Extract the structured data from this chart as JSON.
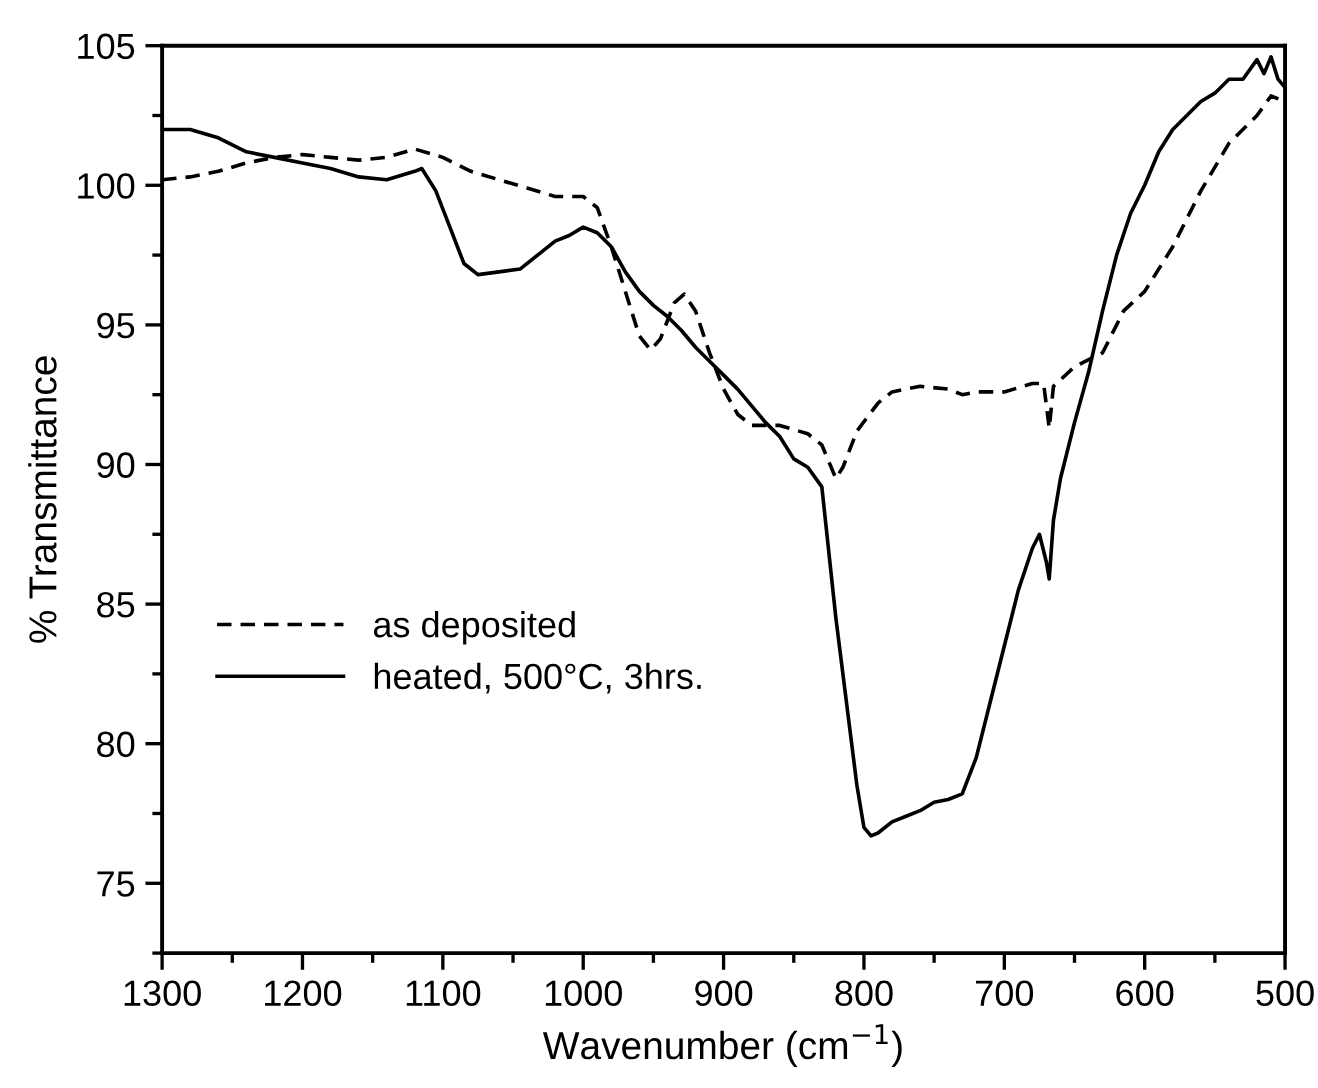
{
  "chart_data": {
    "type": "line",
    "xlabel": "Wavenumber (cm$^{−1}$)",
    "ylabel": "% Transmittance",
    "xlim": [
      1300,
      500
    ],
    "ylim": [
      72.5,
      105
    ],
    "xticks": [
      1300,
      {
        "value": 1250,
        "label": null
      },
      1200,
      {
        "value": 1150,
        "label": null
      },
      1100,
      {
        "value": 1050,
        "label": null
      },
      1000,
      {
        "value": 950,
        "label": null
      },
      900,
      {
        "value": 850,
        "label": null
      },
      800,
      {
        "value": 750,
        "label": null
      },
      700,
      {
        "value": 650,
        "label": null
      },
      600,
      {
        "value": 550,
        "label": null
      },
      500
    ],
    "yticks": [
      {
        "value": 72.5,
        "label": null
      },
      75,
      {
        "value": 77.5,
        "label": null
      },
      80,
      {
        "value": 82.5,
        "label": null
      },
      85,
      {
        "value": 87.5,
        "label": null
      },
      90,
      {
        "value": 92.5,
        "label": null
      },
      95,
      {
        "value": 97.5,
        "label": null
      },
      100,
      {
        "value": 102.5,
        "label": null
      },
      105
    ],
    "grid": false,
    "legend": "left",
    "marker": "none",
    "series": [
      {
        "name": "as deposited",
        "color": "#000000",
        "line_style": "dashed",
        "x": [
          1300,
          1280,
          1260,
          1240,
          1220,
          1200,
          1180,
          1160,
          1140,
          1120,
          1100,
          1080,
          1060,
          1040,
          1020,
          1000,
          990,
          980,
          970,
          960,
          952,
          945,
          935,
          928,
          920,
          910,
          900,
          890,
          880,
          860,
          840,
          830,
          820,
          815,
          805,
          790,
          780,
          760,
          740,
          730,
          720,
          700,
          680,
          672,
          668,
          665,
          650,
          630,
          615,
          600,
          580,
          560,
          540,
          520,
          510,
          500
        ],
        "values": [
          100.2,
          100.3,
          100.5,
          100.8,
          101.0,
          101.1,
          101.0,
          100.9,
          101.0,
          101.3,
          101.0,
          100.5,
          100.2,
          99.9,
          99.6,
          99.6,
          99.2,
          97.8,
          96.2,
          94.6,
          94.1,
          94.5,
          95.8,
          96.1,
          95.5,
          94.0,
          92.7,
          91.8,
          91.4,
          91.4,
          91.1,
          90.7,
          89.5,
          89.9,
          91.2,
          92.2,
          92.6,
          92.8,
          92.7,
          92.5,
          92.6,
          92.6,
          92.9,
          92.9,
          91.3,
          92.8,
          93.5,
          94.0,
          95.5,
          96.2,
          97.8,
          99.8,
          101.5,
          102.5,
          103.2,
          103.0
        ]
      },
      {
        "name": "heated, 500°C, 3hrs.",
        "color": "#000000",
        "line_style": "solid",
        "x": [
          1300,
          1280,
          1260,
          1240,
          1220,
          1200,
          1180,
          1160,
          1140,
          1120,
          1115,
          1105,
          1095,
          1085,
          1075,
          1060,
          1045,
          1030,
          1020,
          1010,
          1000,
          990,
          980,
          970,
          960,
          950,
          940,
          930,
          920,
          910,
          900,
          890,
          880,
          870,
          860,
          850,
          840,
          830,
          820,
          810,
          805,
          800,
          795,
          790,
          780,
          770,
          760,
          750,
          740,
          730,
          720,
          710,
          700,
          690,
          680,
          675,
          670,
          668,
          665,
          660,
          650,
          640,
          630,
          620,
          610,
          600,
          590,
          580,
          570,
          560,
          550,
          540,
          530,
          520,
          515,
          510,
          505,
          500
        ],
        "values": [
          102.0,
          102.0,
          101.7,
          101.2,
          101.0,
          100.8,
          100.6,
          100.3,
          100.2,
          100.5,
          100.6,
          99.8,
          98.5,
          97.2,
          96.8,
          96.9,
          97.0,
          97.6,
          98.0,
          98.2,
          98.5,
          98.3,
          97.8,
          96.9,
          96.2,
          95.7,
          95.3,
          94.8,
          94.2,
          93.7,
          93.2,
          92.7,
          92.1,
          91.5,
          91.0,
          90.2,
          89.9,
          89.2,
          84.5,
          80.5,
          78.5,
          77.0,
          76.7,
          76.8,
          77.2,
          77.4,
          77.6,
          77.9,
          78.0,
          78.2,
          79.5,
          81.5,
          83.5,
          85.5,
          87.0,
          87.5,
          86.5,
          85.9,
          88.0,
          89.5,
          91.5,
          93.3,
          95.5,
          97.5,
          99.0,
          100.0,
          101.2,
          102.0,
          102.5,
          103.0,
          103.3,
          103.8,
          103.8,
          104.5,
          104.0,
          104.6,
          103.8,
          103.5
        ]
      }
    ]
  }
}
